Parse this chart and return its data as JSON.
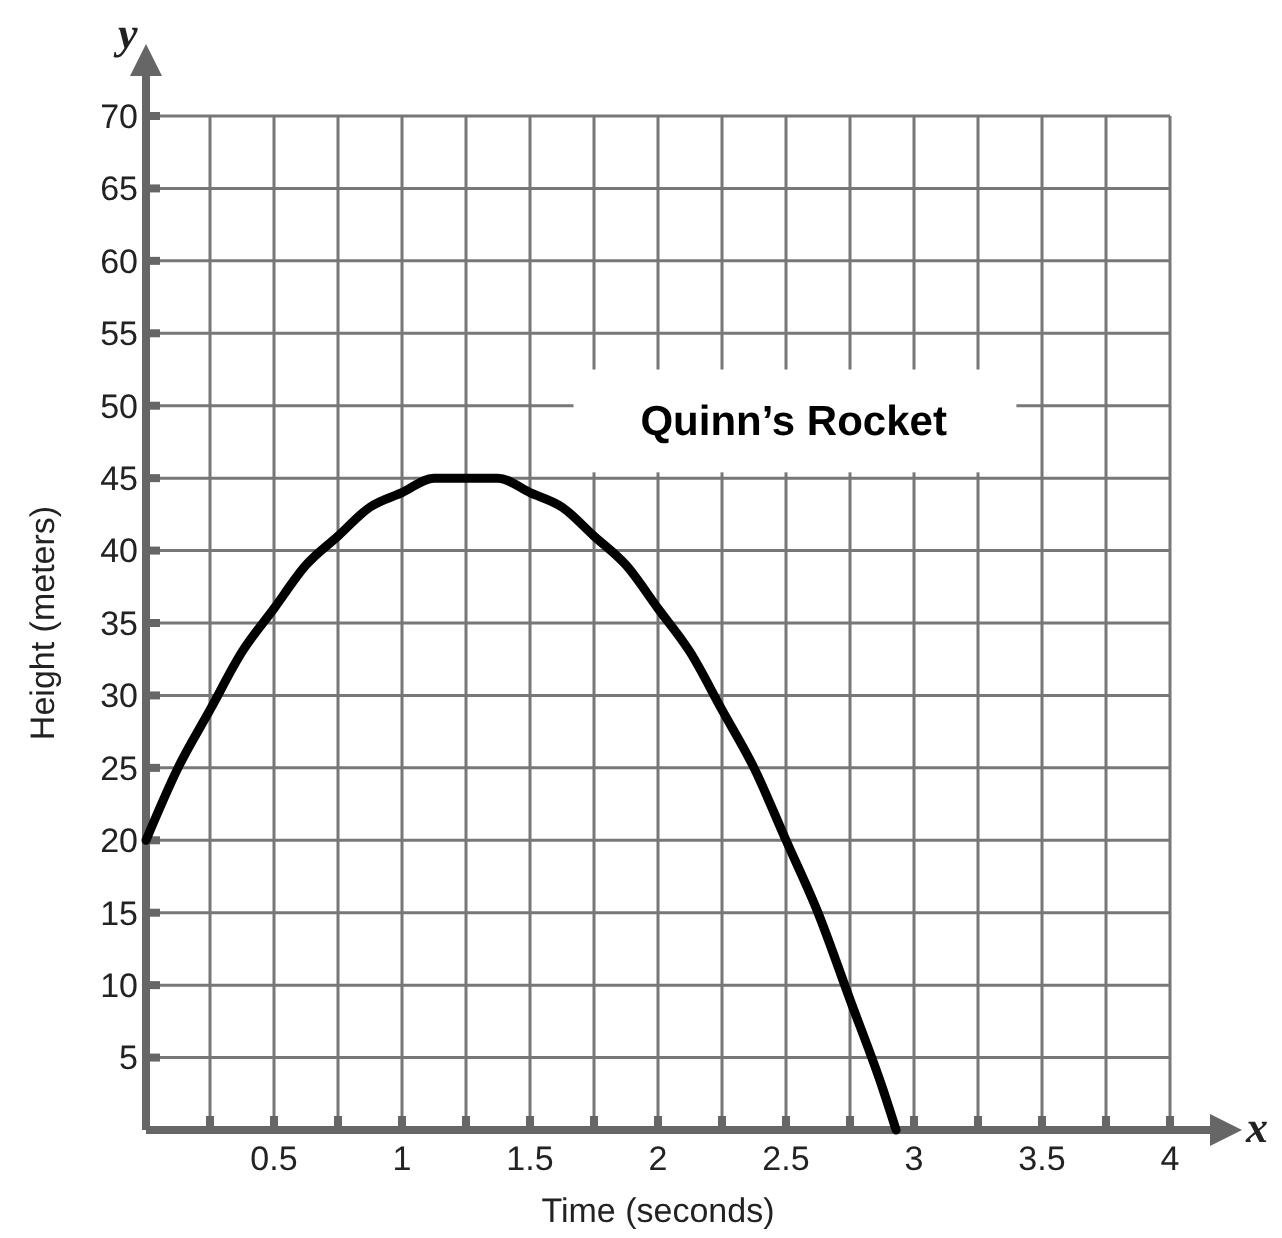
{
  "chart_data": {
    "type": "line",
    "xlabel": "Time (seconds)",
    "ylabel": "Height (meters)",
    "annotations": [
      "x",
      "y"
    ],
    "xlim": [
      0,
      4
    ],
    "ylim": [
      0,
      70
    ],
    "xticks": [
      {
        "value": 0.25,
        "label": null
      },
      0.5,
      {
        "value": 0.75,
        "label": null
      },
      1,
      {
        "value": 1.25,
        "label": null
      },
      1.5,
      {
        "value": 1.75,
        "label": null
      },
      2,
      {
        "value": 2.25,
        "label": null
      },
      2.5,
      {
        "value": 2.75,
        "label": null
      },
      3,
      {
        "value": 3.25,
        "label": null
      },
      3.5,
      {
        "value": 3.75,
        "label": null
      },
      4
    ],
    "yticks": [
      5,
      10,
      15,
      20,
      25,
      30,
      35,
      40,
      45,
      50,
      55,
      60,
      65,
      70
    ],
    "grid": true,
    "marker": "none",
    "line_style": "solid",
    "series": [
      {
        "name": "Quinn’s Rocket",
        "color": "#000000",
        "x": [
          0,
          0.125,
          0.25,
          0.375,
          0.5,
          0.625,
          0.75,
          0.875,
          1,
          1.125,
          1.25,
          1.375,
          1.5,
          1.625,
          1.75,
          1.875,
          2,
          2.125,
          2.25,
          2.375,
          2.5,
          2.625,
          2.75,
          2.875,
          2.93
        ],
        "values": [
          20,
          25,
          29,
          33,
          36,
          39,
          41,
          43,
          44,
          45,
          45,
          45,
          44,
          43,
          41,
          39,
          36,
          33,
          29,
          25,
          20,
          15,
          9,
          3,
          0
        ]
      }
    ]
  }
}
